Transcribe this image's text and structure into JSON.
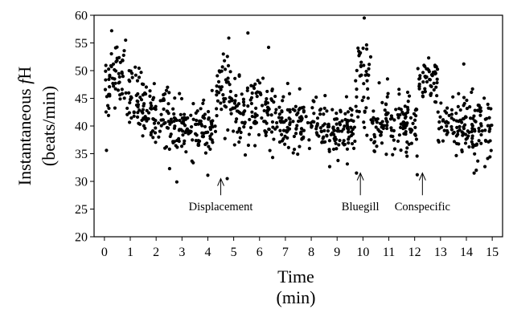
{
  "chart_data": {
    "type": "scatter",
    "title": "",
    "xlabel_line1": "Time",
    "xlabel_line2": "(min)",
    "ylabel_main": "Instantaneous ",
    "ylabel_italic": "f",
    "ylabel_suffix": "H",
    "ylabel_line2": "(beats/min)",
    "xlim": [
      -0.4,
      15.4
    ],
    "ylim": [
      20,
      60
    ],
    "x_ticks": [
      0,
      1,
      2,
      3,
      4,
      5,
      6,
      7,
      8,
      9,
      10,
      11,
      12,
      13,
      14,
      15
    ],
    "y_ticks": [
      20,
      25,
      30,
      35,
      40,
      45,
      50,
      55,
      60
    ],
    "grid": false,
    "marker_color": "#000000",
    "annotations": [
      {
        "label": "Displacement",
        "x": 4.5,
        "arrow_tip_y": 30.5,
        "arrow_base_y": 27.5,
        "label_y": 25.5
      },
      {
        "label": "Bluegill",
        "x": 9.9,
        "arrow_tip_y": 31.5,
        "arrow_base_y": 27.5,
        "label_y": 25.5
      },
      {
        "label": "Conspecific",
        "x": 12.3,
        "arrow_tip_y": 31.5,
        "arrow_base_y": 27.5,
        "label_y": 25.5
      }
    ],
    "segments": [
      {
        "start": 0.0,
        "end": 0.2,
        "mean": 47,
        "sd": 3.2
      },
      {
        "start": 0.2,
        "end": 0.8,
        "mean": 50,
        "sd": 2.8
      },
      {
        "start": 0.8,
        "end": 1.5,
        "mean": 45,
        "sd": 3.0
      },
      {
        "start": 1.5,
        "end": 2.5,
        "mean": 42,
        "sd": 2.6
      },
      {
        "start": 2.5,
        "end": 4.3,
        "mean": 39.5,
        "sd": 2.4
      },
      {
        "start": 4.3,
        "end": 4.9,
        "mean": 47,
        "sd": 3.2
      },
      {
        "start": 4.9,
        "end": 6.6,
        "mean": 42,
        "sd": 3.0
      },
      {
        "start": 6.6,
        "end": 7.3,
        "mean": 41,
        "sd": 3.5
      },
      {
        "start": 7.3,
        "end": 9.7,
        "mean": 39.5,
        "sd": 2.4
      },
      {
        "start": 9.7,
        "end": 10.3,
        "mean": 48,
        "sd": 4.0
      },
      {
        "start": 10.3,
        "end": 12.1,
        "mean": 40,
        "sd": 2.6
      },
      {
        "start": 12.1,
        "end": 12.9,
        "mean": 48.5,
        "sd": 2.4
      },
      {
        "start": 12.9,
        "end": 15.0,
        "mean": 40,
        "sd": 2.8
      }
    ],
    "points_per_min": 68,
    "outliers": [
      {
        "x": 10.05,
        "y": 59.5
      },
      {
        "x": 0.28,
        "y": 57.2
      },
      {
        "x": 5.55,
        "y": 56.8
      },
      {
        "x": 0.82,
        "y": 55.5
      },
      {
        "x": 6.35,
        "y": 54.2
      },
      {
        "x": 4.6,
        "y": 53.0
      },
      {
        "x": 13.9,
        "y": 51.2
      },
      {
        "x": 10.95,
        "y": 48.5
      },
      {
        "x": 2.8,
        "y": 29.9
      },
      {
        "x": 4.0,
        "y": 31.1
      },
      {
        "x": 4.75,
        "y": 30.5
      },
      {
        "x": 9.75,
        "y": 31.5
      },
      {
        "x": 12.1,
        "y": 31.2
      },
      {
        "x": 0.08,
        "y": 35.6
      },
      {
        "x": 14.3,
        "y": 31.5
      }
    ]
  }
}
